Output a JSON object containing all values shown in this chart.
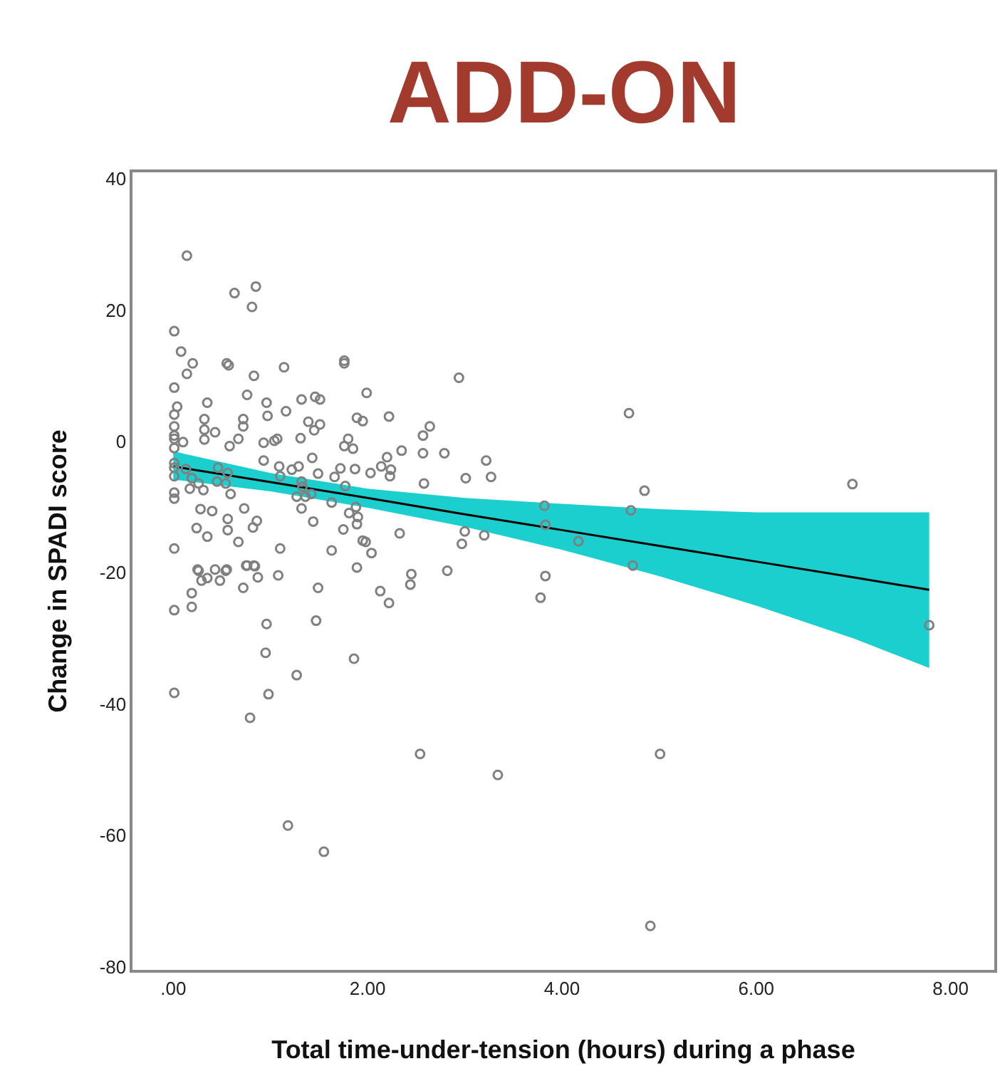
{
  "chart_data": {
    "type": "scatter",
    "title": "ADD-ON",
    "xlabel": "Total time-under-tension (hours) during a phase",
    "ylabel": "Change in SPADI score",
    "xlim": [
      -0.42,
      8.45
    ],
    "ylim": [
      -80.5,
      41
    ],
    "xticks": [
      {
        "value": 0,
        "label": ".00"
      },
      {
        "value": 2,
        "label": "2.00"
      },
      {
        "value": 4,
        "label": "4.00"
      },
      {
        "value": 6,
        "label": "6.00"
      },
      {
        "value": 8,
        "label": "8.00"
      }
    ],
    "yticks": [
      40,
      20,
      0,
      -20,
      -40,
      -60,
      -80
    ],
    "series": [
      {
        "color": "#808080",
        "marker": "circle",
        "x": [
          0.14,
          0.63,
          0.85,
          0.81,
          0.01,
          0.08,
          0.2,
          0.14,
          0.55,
          0.57,
          0.83,
          1.14,
          1.76,
          1.76,
          0.01,
          1.99,
          0.76,
          0.04,
          0.01,
          0.35,
          0.96,
          1.32,
          1.46,
          1.51,
          0.97,
          1.16,
          0.01,
          0.32,
          0.72,
          0.72,
          1.39,
          1.51,
          1.45,
          1.89,
          1.95,
          2.22,
          0.32,
          0.32,
          0.43,
          0.01,
          0.01,
          0.1,
          0.67,
          0.58,
          0.01,
          0.93,
          1.04,
          1.07,
          1.31,
          1.8,
          1.76,
          1.85,
          2.35,
          1.43,
          0.93,
          2.2,
          2.14,
          2.24,
          2.23,
          0.01,
          0.01,
          0.01,
          0.13,
          0.46,
          0.56,
          1.09,
          1.1,
          1.22,
          1.29,
          1.49,
          1.72,
          1.87,
          1.66,
          2.03,
          0.19,
          0.26,
          0.31,
          0.17,
          0.45,
          0.54,
          0.59,
          1.32,
          1.33,
          1.27,
          1.36,
          1.42,
          1.77,
          1.63,
          0.01,
          0.01,
          0.28,
          0.4,
          0.73,
          1.32,
          1.81,
          1.88,
          1.9,
          1.89,
          1.44,
          0.24,
          0.35,
          0.56,
          0.56,
          0.86,
          0.82,
          0.67,
          1.75,
          1.95,
          1.98,
          2.33,
          2.04,
          0.01,
          1.1,
          1.63,
          0.25,
          0.43,
          0.55,
          0.75,
          0.83,
          1.89,
          0.26,
          0.35,
          0.29,
          0.48,
          0.54,
          0.76,
          0.84,
          0.87,
          0.72,
          1.08,
          1.49,
          2.13,
          2.22,
          2.45,
          2.44,
          0.19,
          0.19,
          0.01,
          0.96,
          1.47,
          0.95,
          1.86,
          1.27,
          0.01,
          0.98,
          0.79,
          1.18,
          1.55,
          2.94,
          2.64,
          2.57,
          2.57,
          2.79,
          2.58,
          3.22,
          3.01,
          3.27,
          4.69,
          4.85,
          3.82,
          3.83,
          4.71,
          4.17,
          3.0,
          2.97,
          3.2,
          4.73,
          2.82,
          3.83,
          3.78,
          2.54,
          5.01,
          3.34,
          4.91,
          6.99,
          7.78
        ],
        "values": [
          28.3,
          22.6,
          23.6,
          20.5,
          16.8,
          13.7,
          11.9,
          10.3,
          11.9,
          11.6,
          10.0,
          11.3,
          12.3,
          11.9,
          8.2,
          7.4,
          7.1,
          5.3,
          4.1,
          5.9,
          5.9,
          6.4,
          6.8,
          6.4,
          3.9,
          4.6,
          2.3,
          3.4,
          3.4,
          2.3,
          3.0,
          2.6,
          1.7,
          3.6,
          3.1,
          3.8,
          1.8,
          0.3,
          1.4,
          0.9,
          0.4,
          -0.1,
          0.4,
          -0.7,
          -1.0,
          -0.2,
          0.1,
          0.4,
          0.5,
          0.4,
          -0.7,
          -1.1,
          -1.4,
          -2.5,
          -2.9,
          -2.4,
          -3.8,
          -4.3,
          -5.3,
          -3.3,
          -4.0,
          -5.3,
          -4.2,
          -4.0,
          -4.8,
          -3.8,
          -5.3,
          -4.3,
          -3.8,
          -4.9,
          -4.1,
          -4.2,
          -5.4,
          -4.8,
          -5.6,
          -6.4,
          -7.4,
          -7.2,
          -6.1,
          -6.4,
          -8.0,
          -6.1,
          -6.9,
          -8.4,
          -8.4,
          -8.0,
          -6.8,
          -9.3,
          -7.8,
          -8.7,
          -10.3,
          -10.6,
          -10.2,
          -10.2,
          -10.9,
          -10.0,
          -11.5,
          -12.6,
          -12.2,
          -13.2,
          -14.5,
          -11.8,
          -13.5,
          -12.1,
          -13.1,
          -15.3,
          -13.4,
          -15.1,
          -15.3,
          -14.0,
          -17.0,
          -16.3,
          -16.3,
          -16.6,
          -19.5,
          -19.5,
          -19.5,
          -18.9,
          -18.9,
          -19.2,
          -19.7,
          -20.8,
          -21.2,
          -21.2,
          -19.7,
          -18.9,
          -19.0,
          -20.7,
          -22.3,
          -20.4,
          -22.3,
          -22.8,
          -24.6,
          -20.2,
          -21.8,
          -23.1,
          -25.2,
          -25.7,
          -27.8,
          -27.3,
          -32.2,
          -33.1,
          -35.6,
          -38.3,
          -38.5,
          -42.1,
          -58.5,
          -62.5,
          9.7,
          2.3,
          0.9,
          -1.8,
          -1.8,
          -6.4,
          -2.9,
          -5.6,
          -5.4,
          4.3,
          -7.5,
          -9.8,
          -12.7,
          -10.5,
          -15.2,
          -13.7,
          -15.6,
          -14.3,
          -18.9,
          -19.7,
          -20.5,
          -23.8,
          -47.6,
          -47.6,
          -50.8,
          -73.8,
          -6.5,
          -28.0
        ]
      },
      {
        "type": "line",
        "color": "#000000",
        "line_style": "solid",
        "marker": "none",
        "x": [
          0,
          1,
          2,
          3,
          4,
          5,
          6,
          7,
          7.78
        ],
        "values": [
          -3.8,
          -6.2,
          -8.6,
          -11.1,
          -13.5,
          -15.9,
          -18.3,
          -20.7,
          -22.6
        ],
        "lower": [
          -5.8,
          -7.6,
          -10.1,
          -13.0,
          -16.5,
          -20.5,
          -25.0,
          -30.0,
          -34.5
        ],
        "upper": [
          -1.5,
          -4.8,
          -7.2,
          -8.6,
          -9.5,
          -10.3,
          -10.8,
          -10.8,
          -10.8
        ]
      }
    ]
  }
}
